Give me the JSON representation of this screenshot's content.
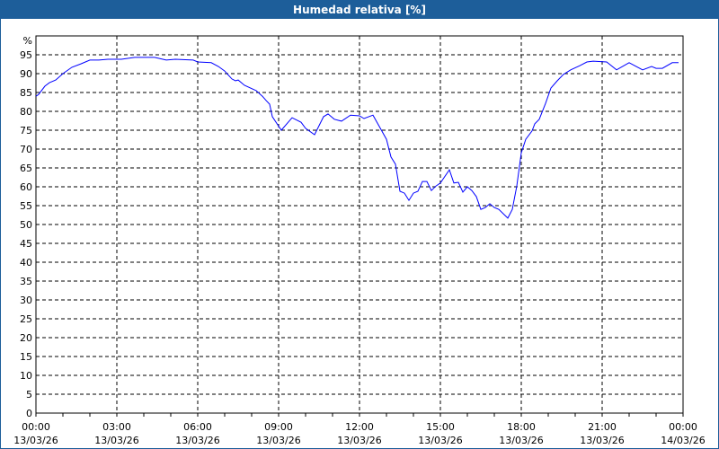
{
  "window": {
    "title": "Humedad relativa [%]"
  },
  "chart_data": {
    "type": "line",
    "title": "Humedad relativa [%]",
    "ylabel": "%",
    "xlabel": "",
    "ylim": [
      0,
      100
    ],
    "yticks": [
      0,
      5,
      10,
      15,
      20,
      25,
      30,
      35,
      40,
      45,
      50,
      55,
      60,
      65,
      70,
      75,
      80,
      85,
      90,
      95
    ],
    "xlim": [
      "13/03/26 00:00",
      "14/03/26 00:00"
    ],
    "xticks": [
      {
        "time": "00:00",
        "date": "13/03/26"
      },
      {
        "time": "03:00",
        "date": "13/03/26"
      },
      {
        "time": "06:00",
        "date": "13/03/26"
      },
      {
        "time": "09:00",
        "date": "13/03/26"
      },
      {
        "time": "12:00",
        "date": "13/03/26"
      },
      {
        "time": "15:00",
        "date": "13/03/26"
      },
      {
        "time": "18:00",
        "date": "13/03/26"
      },
      {
        "time": "21:00",
        "date": "13/03/26"
      },
      {
        "time": "00:00",
        "date": "14/03/26"
      }
    ],
    "grid": true,
    "line_color": "#0000ff",
    "series": [
      {
        "x": [
          "00:00",
          "00:06",
          "00:20",
          "00:30",
          "00:44",
          "01:00",
          "01:20",
          "01:40",
          "02:00",
          "02:20",
          "02:40",
          "03:10",
          "03:40",
          "04:24",
          "04:50",
          "05:10",
          "05:50",
          "06:00",
          "06:30",
          "06:46",
          "07:00",
          "07:16",
          "07:24",
          "07:30",
          "07:44",
          "08:10",
          "08:24",
          "08:32",
          "08:40",
          "08:46",
          "09:06",
          "09:30",
          "09:50",
          "10:00",
          "10:20",
          "10:40",
          "10:50",
          "11:04",
          "11:20",
          "11:40",
          "12:00",
          "12:10",
          "12:30",
          "13:00",
          "13:10",
          "13:20",
          "13:30",
          "13:40",
          "13:50",
          "14:00",
          "14:10",
          "14:20",
          "14:30",
          "14:40",
          "14:50",
          "15:00",
          "15:20",
          "15:30",
          "15:40",
          "15:50",
          "16:00",
          "16:10",
          "16:20",
          "16:30",
          "16:40",
          "16:50",
          "17:00",
          "17:10",
          "17:30",
          "17:40",
          "17:50",
          "18:00",
          "18:10",
          "18:24",
          "18:30",
          "18:40",
          "18:54",
          "19:06",
          "19:20",
          "19:34",
          "19:50",
          "20:10",
          "20:26",
          "20:40",
          "21:10",
          "21:32",
          "22:00",
          "22:30",
          "22:50",
          "23:00",
          "23:14",
          "23:36",
          "23:50"
        ],
        "y": [
          84.0,
          84.5,
          86.7,
          87.6,
          88.3,
          90.0,
          91.7,
          92.6,
          93.6,
          93.6,
          93.8,
          93.8,
          94.3,
          94.3,
          93.6,
          93.8,
          93.6,
          93.1,
          92.9,
          91.9,
          90.7,
          88.6,
          88.1,
          88.3,
          86.9,
          85.5,
          84.0,
          82.9,
          81.9,
          78.6,
          75.0,
          78.3,
          77.1,
          75.5,
          73.8,
          78.6,
          79.3,
          77.9,
          77.4,
          79.0,
          78.8,
          78.1,
          79.0,
          72.6,
          67.9,
          66.0,
          58.8,
          58.3,
          56.4,
          58.3,
          58.8,
          61.4,
          61.4,
          59.0,
          60.2,
          61.0,
          64.5,
          61.0,
          61.2,
          58.6,
          60.0,
          59.0,
          57.4,
          54.0,
          54.5,
          55.5,
          54.5,
          54.0,
          51.7,
          54.0,
          60.2,
          69.0,
          72.6,
          74.8,
          76.7,
          77.9,
          82.1,
          86.2,
          88.1,
          89.8,
          91.0,
          92.1,
          93.1,
          93.3,
          93.1,
          91.0,
          92.9,
          91.0,
          91.9,
          91.4,
          91.4,
          92.9,
          92.9
        ]
      }
    ]
  }
}
